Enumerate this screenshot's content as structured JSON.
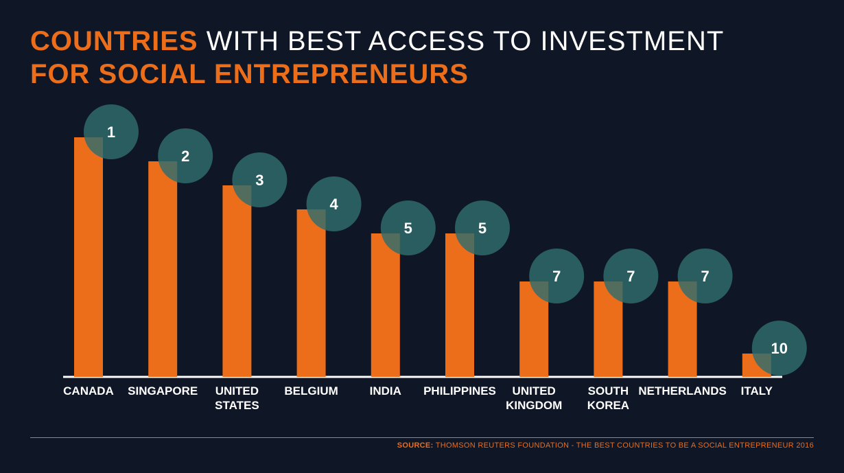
{
  "title": {
    "line1_highlight": "COUNTRIES",
    "line1_rest": "WITH BEST ACCESS TO INVESTMENT",
    "line2": "FOR SOCIAL ENTREPRENEURS"
  },
  "colors": {
    "background": "#0f1626",
    "bar": "#ec6d1a",
    "rank_circle": "#2f6d6e",
    "baseline": "#ffffff",
    "accent": "#ec6d1a"
  },
  "chart_data": {
    "type": "bar",
    "categories": [
      "CANADA",
      "SINGAPORE",
      "UNITED STATES",
      "BELGIUM",
      "INDIA",
      "PHILIPPINES",
      "UNITED KINGDOM",
      "SOUTH KOREA",
      "NETHERLANDS",
      "ITALY"
    ],
    "category_lines": [
      [
        "CANADA"
      ],
      [
        "SINGAPORE"
      ],
      [
        "UNITED",
        "STATES"
      ],
      [
        "BELGIUM"
      ],
      [
        "INDIA"
      ],
      [
        "PHILIPPINES"
      ],
      [
        "UNITED",
        "KINGDOM"
      ],
      [
        "SOUTH",
        "KOREA"
      ],
      [
        "NETHERLANDS"
      ],
      [
        "ITALY"
      ]
    ],
    "values": [
      1,
      2,
      3,
      4,
      5,
      5,
      7,
      7,
      7,
      10
    ],
    "rank_labels": [
      "1",
      "2",
      "3",
      "4",
      "5",
      "5",
      "7",
      "7",
      "7",
      "10"
    ],
    "bar_meaning": "rank (taller bar = better rank)",
    "grid": false,
    "legend": "none"
  },
  "footer": {
    "source_label": "SOURCE:",
    "source_text": "THOMSON REUTERS FOUNDATION - THE BEST COUNTRIES TO BE A SOCIAL ENTREPRENEUR 2016"
  }
}
